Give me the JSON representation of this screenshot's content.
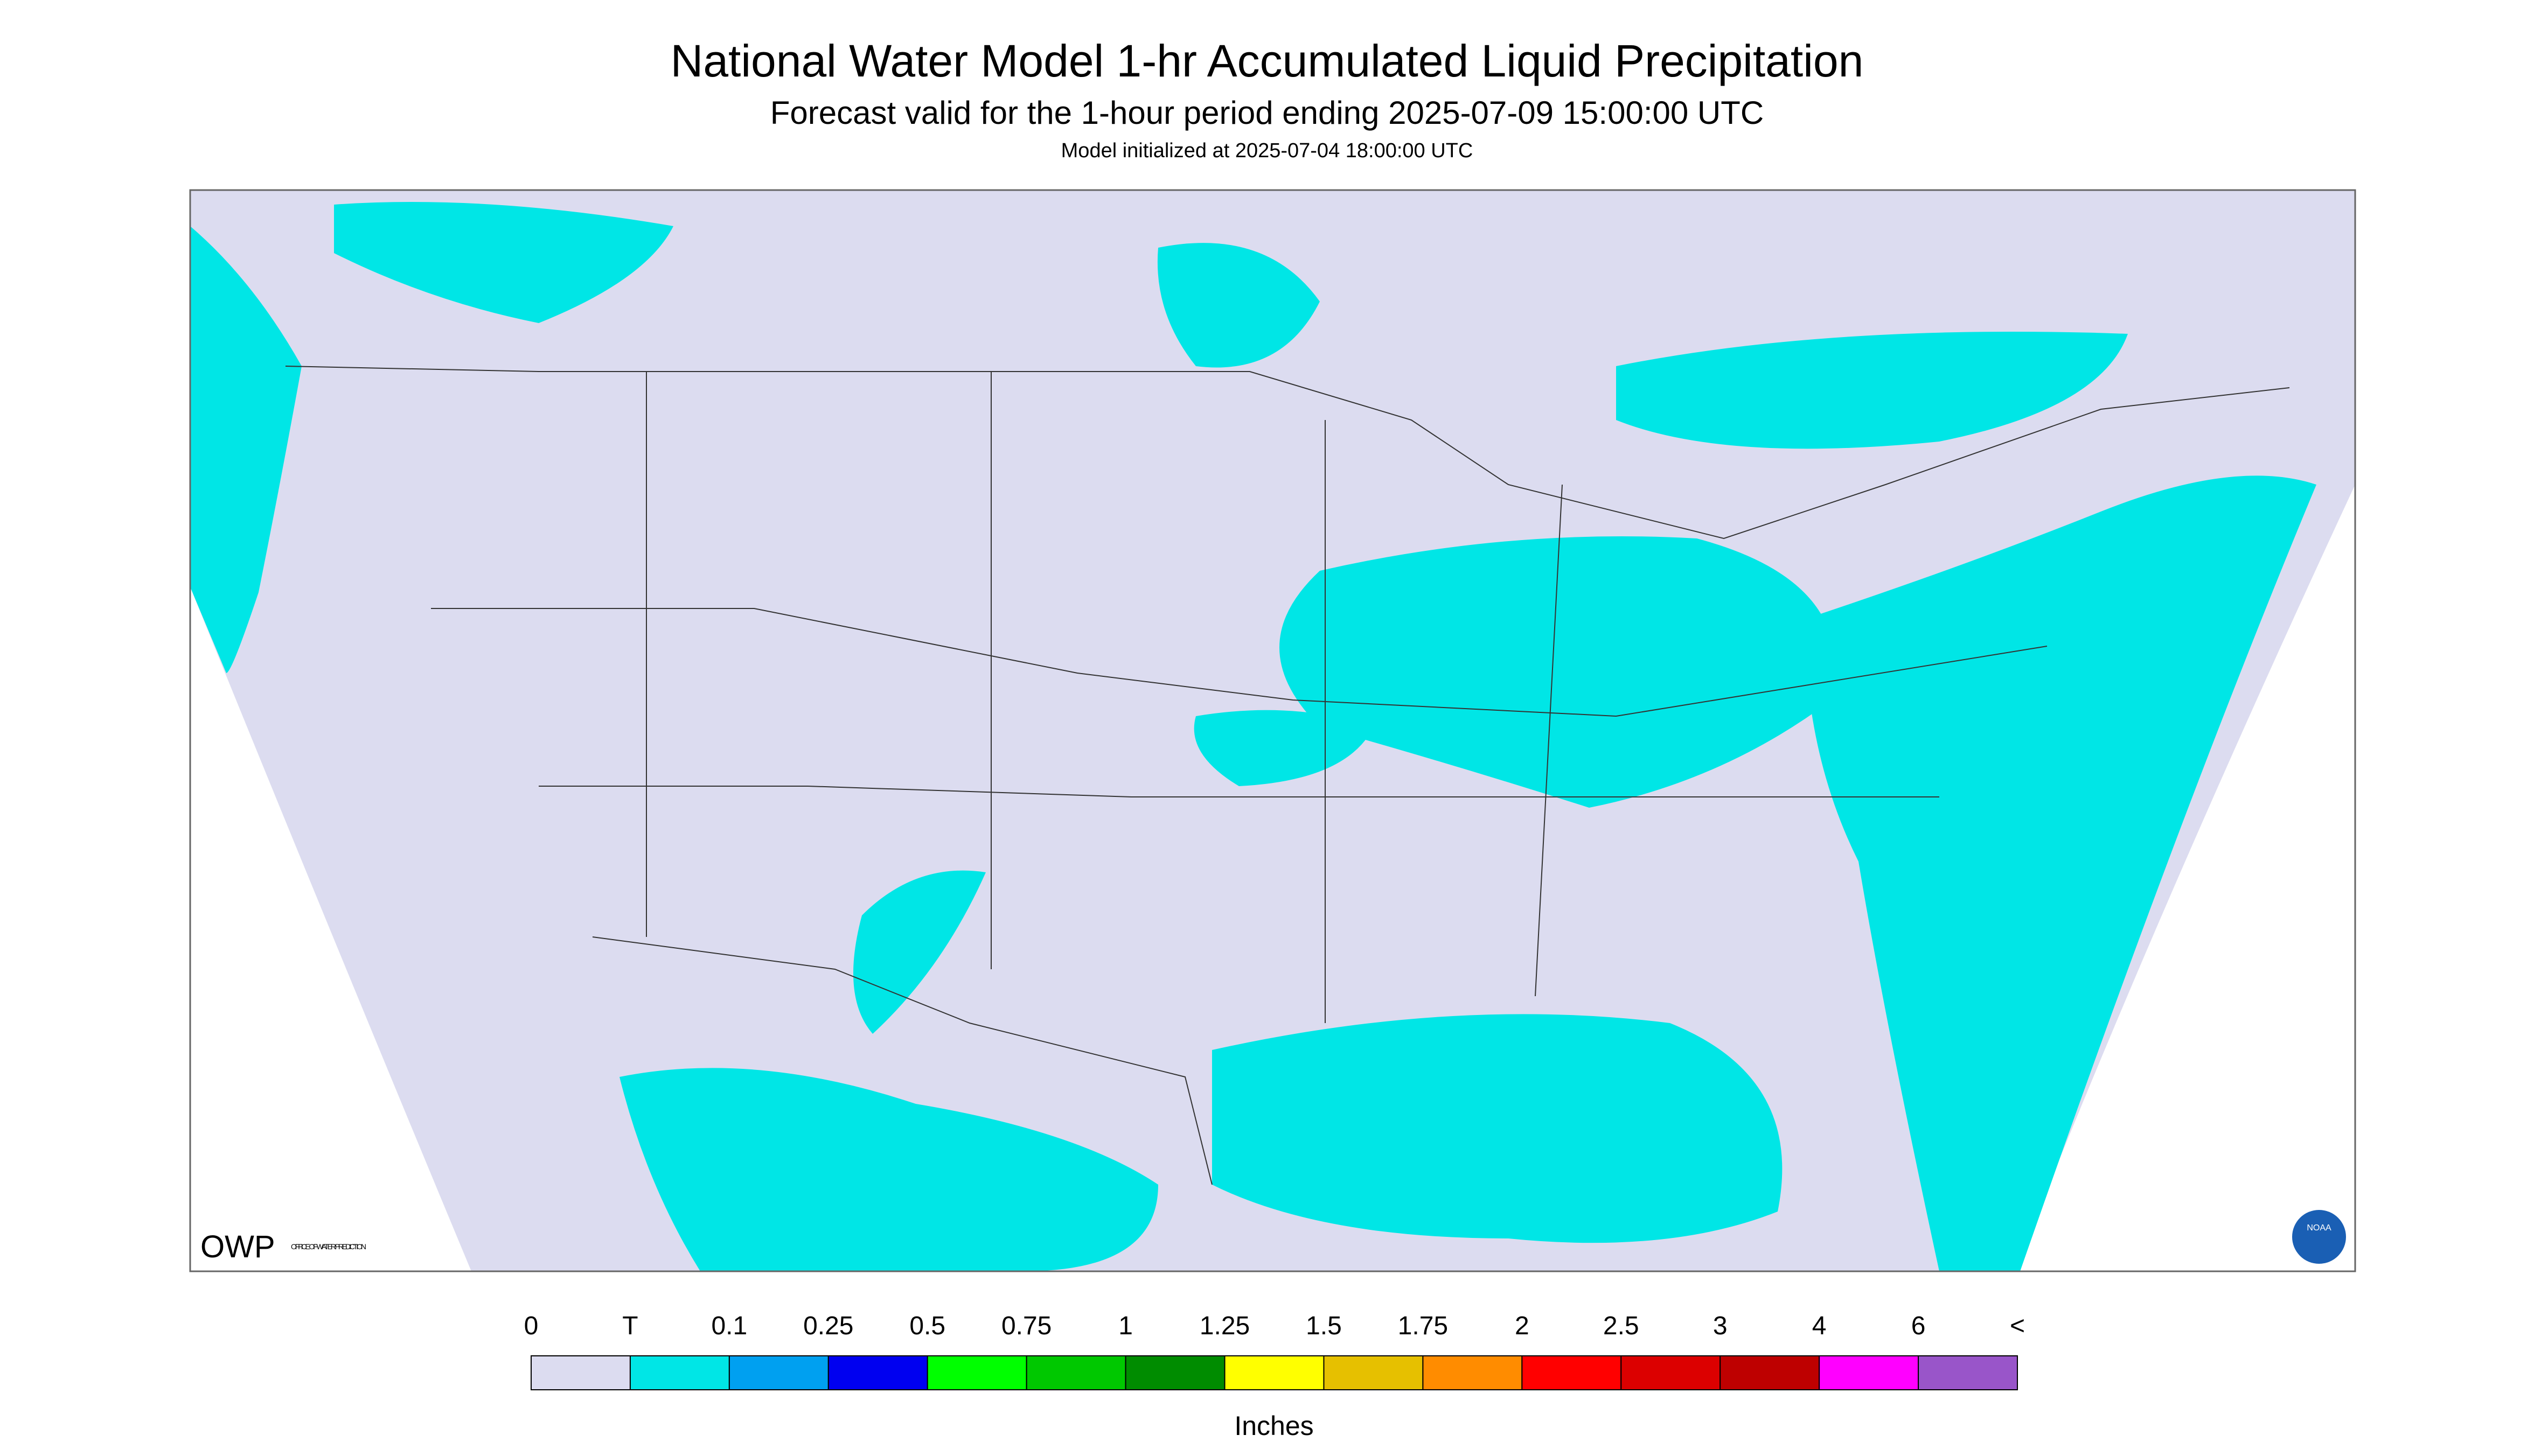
{
  "header": {
    "title": "National Water Model 1-hr Accumulated Liquid Precipitation",
    "subtitle": "Forecast valid for the 1-hour period ending 2025-07-09 15:00:00 UTC",
    "note": "Model initialized at 2025-07-04 18:00:00 UTC"
  },
  "map": {
    "background": "#dcdcf0",
    "precip_color": "#00e6e6",
    "logo_left": "OWP",
    "logo_left_sub": "OFFICE OF WATER PREDICTION",
    "logo_right": "NOAA"
  },
  "legend": {
    "labels": [
      "0",
      "T",
      "0.1",
      "0.25",
      "0.5",
      "0.75",
      "1",
      "1.25",
      "1.5",
      "1.75",
      "2",
      "2.5",
      "3",
      "4",
      "6",
      "<"
    ],
    "colors": [
      "#dcdcf0",
      "#00e6e6",
      "#00a0f0",
      "#0000f0",
      "#00ff00",
      "#00c800",
      "#008c00",
      "#ffff00",
      "#e6c000",
      "#ff8c00",
      "#ff0000",
      "#dc0000",
      "#be0000",
      "#ff00ff",
      "#9955c9"
    ],
    "unit": "Inches"
  }
}
